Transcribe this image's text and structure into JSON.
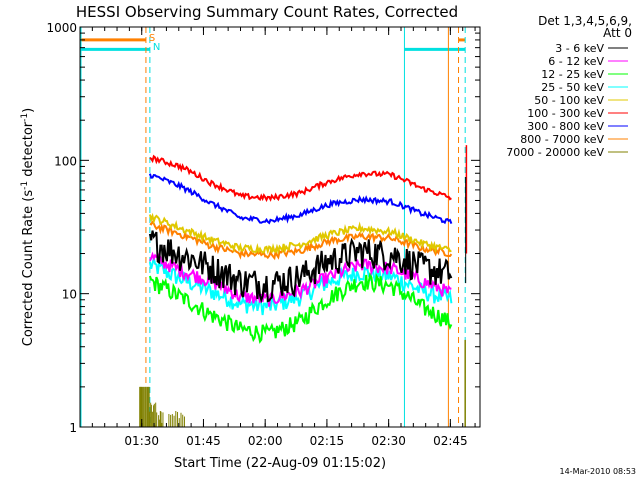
{
  "chart_data": {
    "type": "line",
    "title": "HESSI Observing Summary Count Rates, Corrected",
    "xlabel": "Start Time (22-Aug-09 01:15:02)",
    "ylabel_parts": [
      "Corrected Count Rate (s",
      "-1",
      " detector",
      "-1",
      ")"
    ],
    "y_scale": "log",
    "ylim": [
      1,
      1000
    ],
    "xlim": [
      1.25,
      2.87
    ],
    "x_ticks": [
      {
        "value": 1.5,
        "label": "01:30"
      },
      {
        "value": 1.75,
        "label": "01:45"
      },
      {
        "value": 2.0,
        "label": "02:00"
      },
      {
        "value": 2.25,
        "label": "02:15"
      },
      {
        "value": 2.5,
        "label": "02:30"
      },
      {
        "value": 2.75,
        "label": "02:45"
      }
    ],
    "y_ticks": [
      {
        "value": 1,
        "label": "1"
      },
      {
        "value": 10,
        "label": "10"
      },
      {
        "value": 100,
        "label": "100"
      },
      {
        "value": 1000,
        "label": "1000"
      }
    ],
    "legend": {
      "position": "right",
      "header_line1": "Det 1,3,4,5,6,9,",
      "header_line2": "Att 0"
    },
    "markers": [
      {
        "label": "S",
        "color": "#ff8000"
      },
      {
        "label": "N",
        "color": "#00e0e0"
      }
    ],
    "flags": {
      "night_color": "#00e0e0",
      "saa_color": "#ff8000",
      "night_level": 680,
      "saa_level": 800,
      "day_start": 1.533,
      "day_end": 2.564,
      "saa_dashed_x": [
        1.517,
        2.783
      ],
      "night_dashed_x": [
        1.533
      ],
      "night_solid_x": [
        1.25,
        2.564
      ],
      "saa_solid_x": [
        2.742
      ],
      "end_dashed_x": [
        2.81
      ]
    },
    "series": [
      {
        "name": "3 - 6 keV",
        "color": "#000000",
        "shape": [
          25,
          20,
          16,
          12.5,
          12,
          13.5,
          18,
          21,
          20,
          16,
          14
        ],
        "noise": 0.18
      },
      {
        "name": "6 - 12 keV",
        "color": "#ff00ff",
        "shape": [
          19,
          15,
          12.5,
          9.5,
          9,
          10.5,
          13.5,
          16.5,
          15.5,
          12.5,
          10
        ],
        "noise": 0.08
      },
      {
        "name": "12 - 25 keV",
        "color": "#00ff00",
        "shape": [
          12.5,
          9.5,
          7,
          5.4,
          5.0,
          6.2,
          9.5,
          12.5,
          11.5,
          8,
          6
        ],
        "noise": 0.1
      },
      {
        "name": "25 - 50 keV",
        "color": "#00ffff",
        "shape": [
          16.5,
          13,
          10.5,
          8.4,
          8.0,
          9.5,
          12.5,
          14.5,
          13.5,
          10.5,
          9
        ],
        "noise": 0.1
      },
      {
        "name": "50 - 100 keV",
        "color": "#e0c800",
        "shape": [
          38,
          31,
          25.5,
          22,
          21.5,
          23.5,
          28,
          31,
          29,
          24,
          21
        ],
        "noise": 0.04
      },
      {
        "name": "100 - 300 keV",
        "color": "#ff0000",
        "shape": [
          105,
          90,
          68,
          54,
          52,
          57,
          70,
          80,
          78,
          62,
          52
        ],
        "noise": 0.03
      },
      {
        "name": "300 - 800 keV",
        "color": "#0000ff",
        "shape": [
          78,
          64,
          48,
          37,
          35,
          39,
          47,
          51,
          49,
          40,
          34
        ],
        "noise": 0.03
      },
      {
        "name": "800 - 7000 keV",
        "color": "#ff8000",
        "shape": [
          33,
          28,
          23,
          20,
          19.5,
          21,
          25,
          27,
          26,
          22,
          20
        ],
        "noise": 0.04
      },
      {
        "name": "7000 - 20000 keV",
        "color": "#808000",
        "shape": [],
        "noise": 0
      }
    ]
  },
  "footer": {
    "timestamp": "14-Mar-2010 08:53"
  }
}
